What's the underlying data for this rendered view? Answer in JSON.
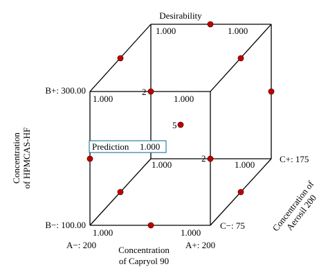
{
  "title": "Desirability",
  "axes": {
    "hpmcas": {
      "label_line1": "Concentration",
      "label_line2": "of HPMCAS-HF",
      "high": "B+: 300.00",
      "low": "B−: 100.00"
    },
    "capryol": {
      "label_line1": "Concentration",
      "label_line2": "of Capryol 90",
      "low": "A−: 200",
      "high": "A+: 200"
    },
    "aerosil": {
      "label_line1": "Concentration of",
      "label_line2": "Aerosil 200",
      "high": "C+: 175",
      "low": "C−: 75"
    }
  },
  "corner_values": {
    "back_top_left": "1.000",
    "back_top_right": "1.000",
    "front_top_left": "1.000",
    "front_top_right": "1.000",
    "back_bottom_left": "1.000",
    "back_bottom_right": "1.000",
    "front_bottom_left": "1.000",
    "front_bottom_right": "1.000"
  },
  "point_counts": {
    "center": "5",
    "top_front_mid": "2",
    "back_vertical_mid": "2"
  },
  "prediction": {
    "label": "Prediction",
    "value": "1.000"
  },
  "colors": {
    "point": "#c00000",
    "edges": "#000000",
    "prediction_border": "#2f7fa0"
  }
}
